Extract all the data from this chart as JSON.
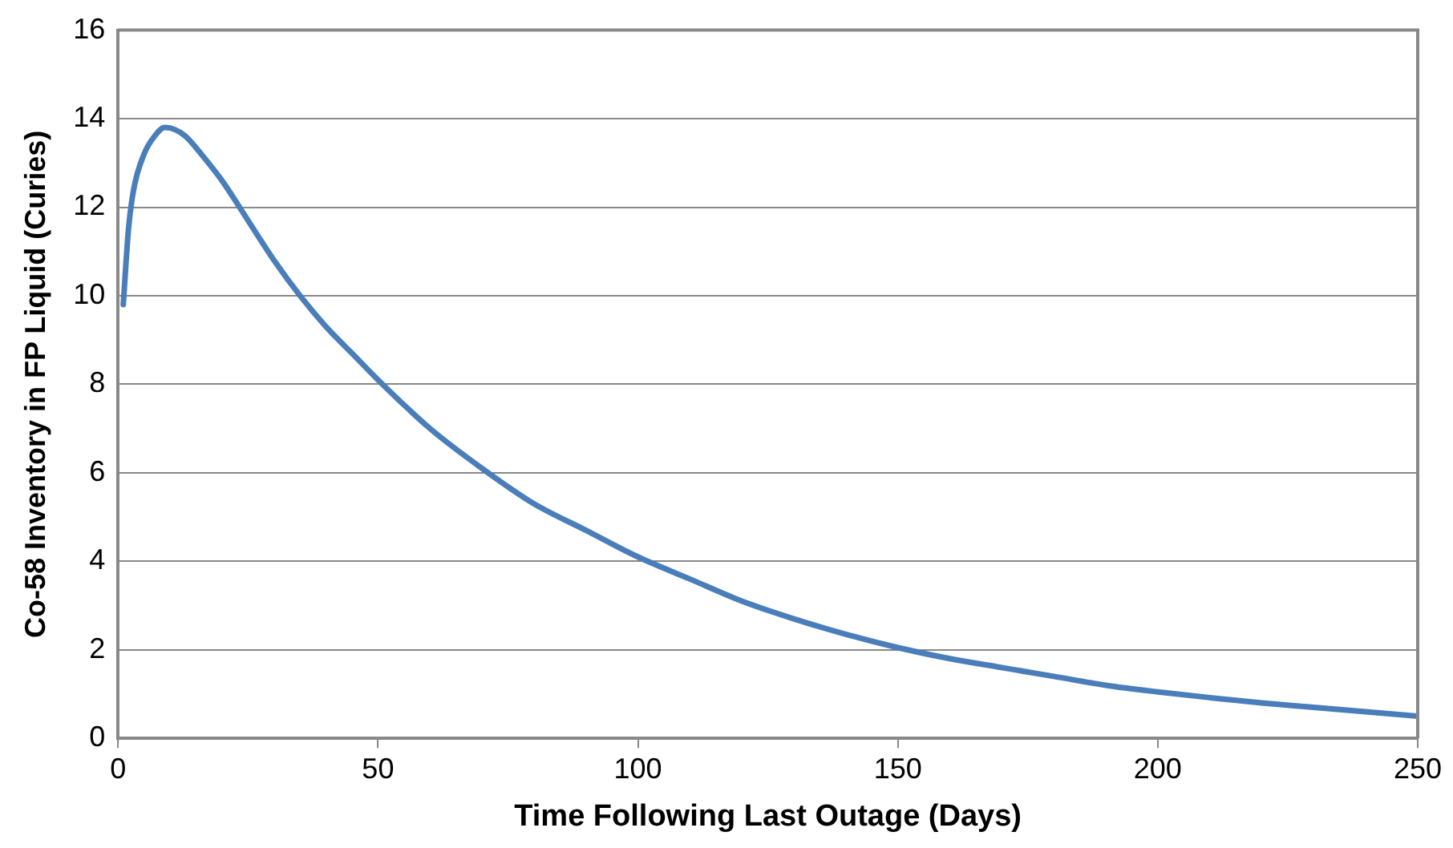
{
  "chart_data": {
    "type": "line",
    "xlabel": "Time Following Last Outage (Days)",
    "ylabel": "Co-58 Inventory in FP Liquid (Curies)",
    "xlim": [
      0,
      250
    ],
    "xticks": [
      0,
      50,
      100,
      150,
      200,
      250
    ],
    "ylim": [
      0,
      16
    ],
    "yticks": [
      0,
      2,
      4,
      6,
      8,
      10,
      12,
      14,
      16
    ],
    "grid": "y",
    "legend": false,
    "marker": "none",
    "line_style": "solid",
    "series": [
      {
        "color": "#4a7ebb",
        "x": [
          1,
          2,
          3,
          5,
          7,
          9,
          11,
          13,
          16,
          20,
          25,
          30,
          35,
          40,
          45,
          50,
          60,
          70,
          80,
          90,
          100,
          110,
          120,
          130,
          140,
          150,
          160,
          170,
          180,
          190,
          200,
          210,
          220,
          230,
          240,
          250
        ],
        "values": [
          9.8,
          11.5,
          12.4,
          13.2,
          13.6,
          13.8,
          13.75,
          13.6,
          13.2,
          12.6,
          11.7,
          10.8,
          10.0,
          9.3,
          8.7,
          8.1,
          7.0,
          6.1,
          5.3,
          4.7,
          4.1,
          3.6,
          3.1,
          2.7,
          2.35,
          2.05,
          1.8,
          1.6,
          1.4,
          1.2,
          1.05,
          0.92,
          0.8,
          0.7,
          0.6,
          0.5
        ]
      }
    ]
  }
}
